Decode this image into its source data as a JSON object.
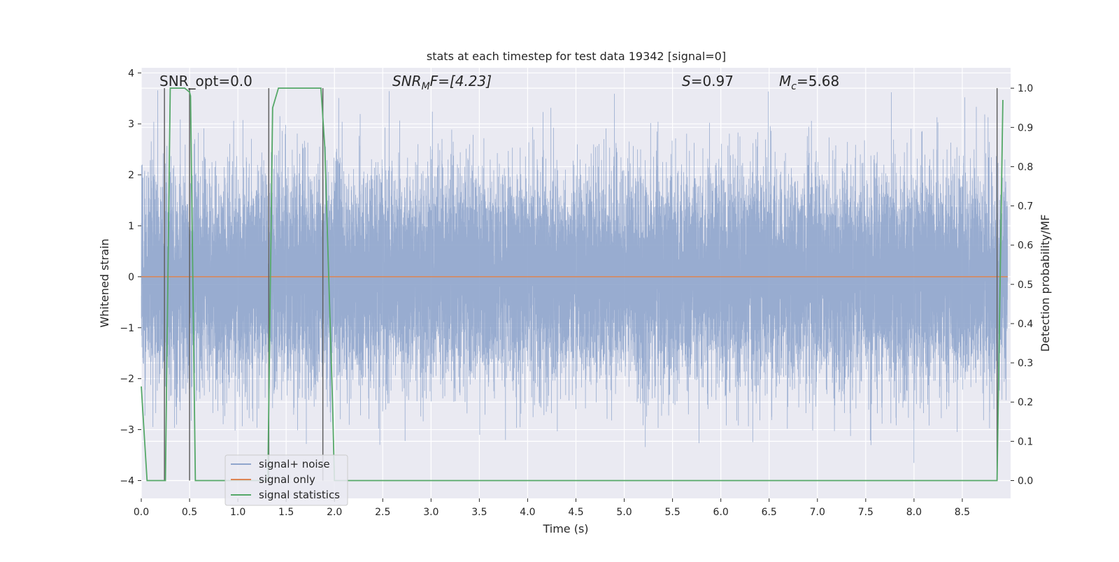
{
  "chart_data": {
    "type": "line",
    "title": "stats at each timestep for test data 19342 [signal=0]",
    "xlabel": "Time (s)",
    "ylabel_left": "Whitened strain",
    "ylabel_right": "Detection probability/MF",
    "xlim": [
      0.0,
      9.0
    ],
    "ylim_left": [
      -4.35,
      4.1
    ],
    "ylim_right": [
      0.0,
      1.0
    ],
    "x_ticks": [
      0.0,
      0.5,
      1.0,
      1.5,
      2.0,
      2.5,
      3.0,
      3.5,
      4.0,
      4.5,
      5.0,
      5.5,
      6.0,
      6.5,
      7.0,
      7.5,
      8.0,
      8.5
    ],
    "x_tick_labels": [
      "0.0",
      "0.5",
      "1.0",
      "1.5",
      "2.0",
      "2.5",
      "3.0",
      "3.5",
      "4.0",
      "4.5",
      "5.0",
      "5.5",
      "6.0",
      "6.5",
      "7.0",
      "7.5",
      "8.0",
      "8.5"
    ],
    "y_left_ticks": [
      -4,
      -3,
      -2,
      -1,
      0,
      1,
      2,
      3,
      4
    ],
    "y_left_tick_labels": [
      "−4",
      "−3",
      "−2",
      "−1",
      "0",
      "1",
      "2",
      "3",
      "4"
    ],
    "y_right_ticks": [
      0.0,
      0.1,
      0.2,
      0.3,
      0.4,
      0.5,
      0.6,
      0.7,
      0.8,
      0.9,
      1.0
    ],
    "y_right_tick_labels": [
      "0.0",
      "0.1",
      "0.2",
      "0.3",
      "0.4",
      "0.5",
      "0.6",
      "0.7",
      "0.8",
      "0.9",
      "1.0"
    ],
    "grid": true,
    "legend_placement": "lower-left",
    "annotations": {
      "snr_opt": "SNR_opt=0.0",
      "snr_mf_sym": "SNR",
      "snr_mf_sub": "M",
      "snr_mf_rest": "F=[4.23]",
      "s_sym": "S",
      "s_rest": "=0.97",
      "mc_sym": "M",
      "mc_sub": "c",
      "mc_rest": "=5.68"
    },
    "series": [
      {
        "name": "signal+ noise",
        "color": "#8fa5cc",
        "style": "dense noise, approx. std 1, range about -4 to 3.7",
        "sample_rate_hz": 2048,
        "noise_std": 1.0,
        "approx_min": -4.0,
        "approx_max": 3.7
      },
      {
        "name": "signal only",
        "color": "#dd8452",
        "x": [
          0.0,
          8.97
        ],
        "y": [
          0.0,
          0.0
        ]
      },
      {
        "name": "signal statistics",
        "color": "#55a868",
        "axis": "right",
        "x": [
          0.0,
          0.06,
          0.25,
          0.3,
          0.45,
          0.5,
          0.51,
          0.56,
          1.31,
          1.36,
          1.42,
          1.86,
          1.9,
          1.98,
          2.0,
          8.86,
          8.92
        ],
        "y": [
          0.24,
          0.0,
          0.0,
          1.0,
          1.0,
          0.99,
          0.98,
          0.0,
          0.0,
          0.95,
          1.0,
          1.0,
          0.85,
          0.2,
          0.0,
          0.0,
          0.97
        ]
      }
    ],
    "vertical_markers": {
      "color": "#606060",
      "x": [
        0.24,
        0.5,
        1.32,
        1.88,
        8.86
      ],
      "y_range": [
        -4.0,
        3.7
      ]
    }
  }
}
